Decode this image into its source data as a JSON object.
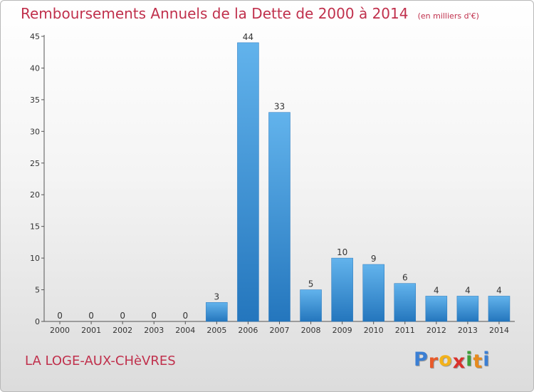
{
  "chart_data": {
    "type": "bar",
    "title": "Remboursements Annuels de la Dette de 2000 à 2014",
    "unit_note": "(en milliers d'€)",
    "categories": [
      "2000",
      "2001",
      "2002",
      "2003",
      "2004",
      "2005",
      "2006",
      "2007",
      "2008",
      "2009",
      "2010",
      "2011",
      "2012",
      "2013",
      "2014"
    ],
    "values": [
      0,
      0,
      0,
      0,
      0,
      3,
      44,
      33,
      5,
      10,
      9,
      6,
      4,
      4,
      4
    ],
    "ylim": [
      0,
      45
    ],
    "yticks": [
      0,
      5,
      10,
      15,
      20,
      25,
      30,
      35,
      40,
      45
    ],
    "xlabel": "",
    "ylabel": "",
    "colors": {
      "bar": "#3a8fd6",
      "bar_light": "#62b3ec",
      "bar_dark": "#2476bd",
      "title": "#c0304c"
    }
  },
  "footer": {
    "commune": "LA LOGE-AUX-CHèVRES",
    "logo_letters": [
      "P",
      "r",
      "o",
      "x",
      "i",
      "t",
      "i"
    ],
    "logo_colors": [
      "#3b7fd4",
      "#e85a2a",
      "#f3b21a",
      "#d9322c",
      "#3f9f3a",
      "#e68a1e",
      "#3b7fd4"
    ]
  }
}
